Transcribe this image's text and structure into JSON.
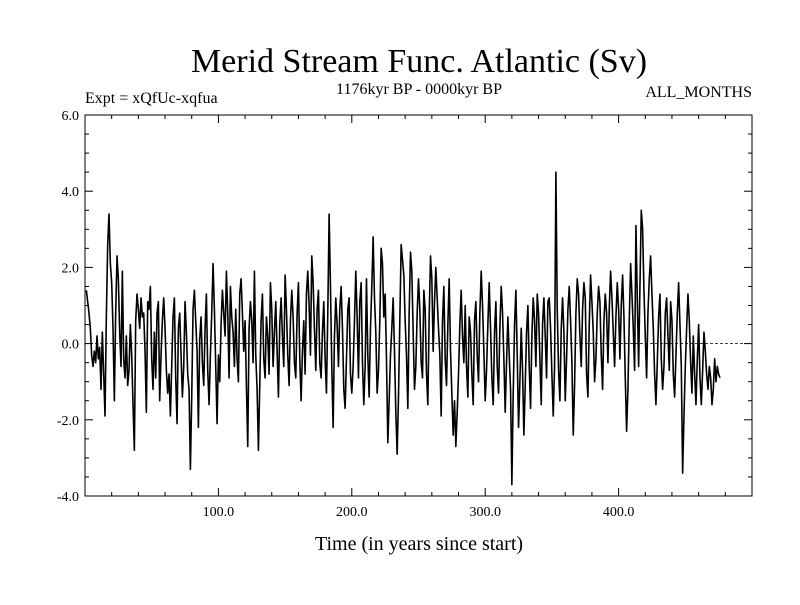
{
  "chart_data": {
    "type": "line",
    "title": "Merid Stream Func. Atlantic (Sv)",
    "subtitle_left": "Expt = xQfUc-xqfua",
    "subtitle_center": "1176kyr BP - 0000kyr BP",
    "subtitle_right": "ALL_MONTHS",
    "xlabel": "Time (in years since start)",
    "ylabel": "",
    "xlim": [
      0,
      500
    ],
    "ylim": [
      -4.0,
      6.0
    ],
    "x_ticks": [
      {
        "value": 100,
        "label": "100.0"
      },
      {
        "value": 200,
        "label": "200.0"
      },
      {
        "value": 300,
        "label": "300.0"
      },
      {
        "value": 400,
        "label": "400.0"
      }
    ],
    "y_ticks": [
      {
        "value": -4,
        "label": "-4.0"
      },
      {
        "value": -2,
        "label": "-2.0"
      },
      {
        "value": 0,
        "label": "0.0"
      },
      {
        "value": 2,
        "label": "2.0"
      },
      {
        "value": 4,
        "label": "4.0"
      },
      {
        "value": 6,
        "label": "6.0"
      }
    ],
    "x_minor_step": 20,
    "y_minor_step": 0.5,
    "reference_line": 0.0,
    "series": [
      {
        "name": "Merid Stream Func. Atlantic",
        "color": "#000000",
        "x_start": 1,
        "x_step": 1,
        "values": [
          1.4,
          1.1,
          0.8,
          0.4,
          -0.3,
          -0.6,
          -0.2,
          -0.5,
          0.2,
          -0.4,
          -0.1,
          -1.2,
          0.3,
          -0.8,
          -1.9,
          0.7,
          2.6,
          3.4,
          2.1,
          1.6,
          0.4,
          -1.5,
          0.8,
          2.3,
          1.7,
          0.3,
          -0.6,
          1.9,
          -0.4,
          -0.9,
          0.2,
          -1.1,
          -0.7,
          0.5,
          -0.3,
          -1.6,
          -2.8,
          0.6,
          1.3,
          0.9,
          0.4,
          1.2,
          0.7,
          0.8,
          -0.2,
          -1.8,
          1.1,
          0.9,
          1.5,
          -0.4,
          -1.2,
          0.3,
          -0.9,
          0.8,
          1.1,
          -1.5,
          -0.3,
          0.6,
          1.2,
          0.4,
          -0.7,
          -1.3,
          -0.8,
          -1.9,
          -0.6,
          0.7,
          1.2,
          -0.9,
          -2.1,
          0.4,
          0.8,
          -0.3,
          -1.4,
          -0.6,
          1.1,
          0.3,
          -0.8,
          -1.2,
          -3.3,
          -1.4,
          0.9,
          1.4,
          0.6,
          -0.2,
          -2.2,
          0.1,
          0.7,
          -0.5,
          -1.1,
          0.4,
          1.3,
          -0.7,
          -1.6,
          -0.3,
          0.8,
          2.1,
          0.9,
          -0.6,
          -2.1,
          -0.3,
          -1.0,
          0.5,
          1.4,
          0.8,
          0.2,
          1.9,
          0.8,
          -0.9,
          1.5,
          0.7,
          0.3,
          -0.6,
          0.9,
          -0.4,
          -1.0,
          1.3,
          1.7,
          0.8,
          -0.2,
          0.6,
          -1.1,
          -2.7,
          0.4,
          1.1,
          0.6,
          -0.5,
          1.9,
          -0.3,
          -1.2,
          -2.8,
          -1.1,
          0.6,
          1.3,
          -0.4,
          -0.9,
          0.7,
          0.2,
          -0.8,
          1.6,
          0.9,
          -0.6,
          0.3,
          1.1,
          -0.2,
          -1.4,
          0.5,
          1.2,
          0.2,
          -0.6,
          1.8,
          0.9,
          -0.3,
          -1.1,
          0.6,
          1.4,
          0.7,
          -0.5,
          -0.9,
          0.8,
          1.6,
          -0.4,
          -1.5,
          -0.2,
          0.6,
          -0.8,
          1.3,
          1.9,
          1.0,
          -0.3,
          2.3,
          1.6,
          0.4,
          -0.7,
          0.9,
          1.4,
          -0.5,
          -0.9,
          0.3,
          1.1,
          -0.4,
          -1.3,
          0.8,
          3.4,
          1.5,
          -0.6,
          -2.2,
          0.2,
          1.2,
          0.5,
          -0.6,
          0.9,
          1.5,
          0.4,
          -1.2,
          -1.7,
          -0.4,
          0.9,
          1.2,
          -0.8,
          -1.3,
          -0.6,
          0.6,
          1.9,
          0.7,
          -0.9,
          1.1,
          1.6,
          -0.5,
          -1.6,
          -0.6,
          1.7,
          -0.3,
          -1.4,
          0.4,
          1.5,
          2.8,
          1.2,
          0.3,
          -1.3,
          -0.7,
          0.6,
          2.5,
          2.1,
          0.7,
          1.3,
          -0.4,
          -2.6,
          -1.5,
          -0.3,
          0.4,
          1.2,
          -0.2,
          -1.8,
          -2.9,
          -1.4,
          0.6,
          2.6,
          2.2,
          1.8,
          0.6,
          -0.3,
          -1.7,
          0.8,
          2.4,
          1.9,
          0.3,
          -1.2,
          -0.6,
          0.8,
          1.7,
          0.9,
          -0.5,
          -0.9,
          1.4,
          0.9,
          -0.8,
          -1.6,
          0.7,
          2.3,
          1.7,
          -0.2,
          1.1,
          2.0,
          1.2,
          0.4,
          -0.3,
          -1.9,
          0.6,
          1.5,
          -0.4,
          -1.1,
          0.5,
          1.7,
          -0.2,
          -1.3,
          -2.4,
          -1.5,
          -2.7,
          -1.8,
          -0.8,
          0.5,
          1.4,
          0.2,
          -0.5,
          1.0,
          -0.6,
          -1.4,
          0.7,
          0.3,
          -0.8,
          -1.6,
          0.6,
          1.1,
          -0.3,
          -1.0,
          0.8,
          1.9,
          1.0,
          -0.2,
          -1.5,
          -0.7,
          0.5,
          1.6,
          0.4,
          -0.9,
          -1.6,
          0.3,
          1.1,
          -0.6,
          -1.3,
          0.4,
          1.5,
          0.8,
          -0.4,
          -1.8,
          -0.5,
          0.7,
          -0.3,
          -1.2,
          -3.7,
          -1.3,
          0.5,
          1.4,
          -0.3,
          -2.2,
          -1.0,
          0.4,
          -0.7,
          -2.4,
          -1.1,
          0.3,
          1.0,
          -0.6,
          -1.7,
          0.2,
          1.2,
          0.6,
          -0.6,
          1.3,
          0.8,
          -0.4,
          -1.6,
          0.5,
          1.2,
          0.2,
          -0.9,
          1.1,
          1.2,
          0.4,
          -0.8,
          -1.9,
          -0.6,
          4.5,
          0.9,
          -0.7,
          -1.5,
          0.4,
          1.2,
          0.3,
          -1.5,
          -0.4,
          0.9,
          1.5,
          0.6,
          -0.5,
          -2.4,
          -1.1,
          0.8,
          1.7,
          1.3,
          0.2,
          -0.6,
          0.9,
          1.6,
          1.2,
          -0.8,
          -1.4,
          0.5,
          1.8,
          1.1,
          0.3,
          -1.0,
          -0.4,
          0.8,
          1.5,
          1.1,
          -0.3,
          -1.2,
          0.6,
          1.3,
          0.8,
          -0.5,
          0.9,
          1.9,
          1.2,
          0.3,
          -0.6,
          0.7,
          1.6,
          0.9,
          -0.4,
          1.0,
          1.8,
          0.7,
          -0.9,
          -2.3,
          -1.2,
          0.6,
          2.1,
          1.3,
          0.4,
          -0.7,
          3.1,
          1.2,
          -0.6,
          1.5,
          3.5,
          3.0,
          1.4,
          0.2,
          -0.9,
          0.8,
          1.7,
          2.3,
          1.3,
          0.4,
          -0.8,
          -1.6,
          -0.5,
          0.7,
          1.3,
          -0.4,
          -1.2,
          -0.6,
          0.8,
          1.2,
          0.2,
          -0.7,
          1.1,
          0.6,
          -0.8,
          -1.4,
          -0.3,
          0.8,
          1.6,
          0.5,
          -0.6,
          -3.4,
          -1.9,
          -0.6,
          0.4,
          1.3,
          0.6,
          -0.5,
          -1.3,
          0.2,
          -0.8,
          -1.6,
          -0.4,
          0.5,
          -0.9,
          -1.6,
          -0.7,
          0.3,
          -0.2,
          -0.8,
          -1.2,
          -0.6,
          -0.9,
          -1.6,
          -1.2,
          -0.4,
          -1.0,
          -0.6,
          -0.8,
          -0.9
        ]
      }
    ]
  }
}
